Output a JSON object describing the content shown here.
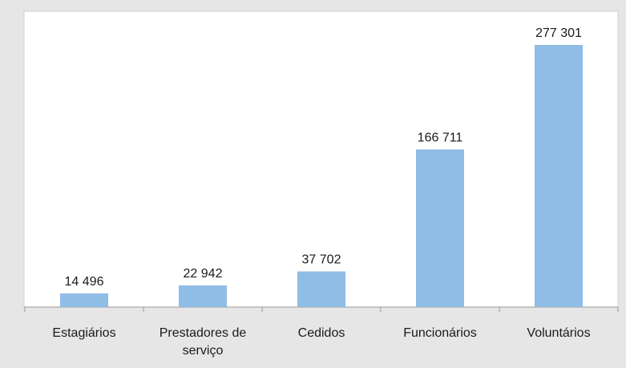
{
  "chart_data": {
    "type": "bar",
    "categories": [
      "Estagiários",
      "Prestadores de serviço",
      "Cedidos",
      "Funcionários",
      "Voluntários"
    ],
    "values": [
      14496,
      22942,
      37702,
      166711,
      277301
    ],
    "value_labels": [
      "14 496",
      "22 942",
      "37 702",
      "166 711",
      "277 301"
    ],
    "color": "#8fbde6"
  }
}
